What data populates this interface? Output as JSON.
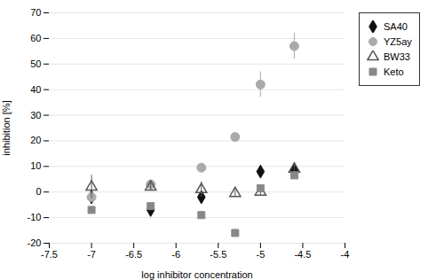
{
  "chart_data": {
    "type": "scatter",
    "xlabel": "log inhibitor concentration",
    "ylabel": "inhibition [%]",
    "xlim": [
      -7.5,
      -4.0
    ],
    "ylim": [
      -20,
      70
    ],
    "xticks": [
      -7.5,
      -7,
      -6.5,
      -6,
      -5.5,
      -5,
      -4.5,
      -4
    ],
    "yticks": [
      -20,
      -10,
      0,
      10,
      20,
      30,
      40,
      50,
      60,
      70
    ],
    "grid": true,
    "legend": "right",
    "series": [
      {
        "name": "SA40",
        "color": "#111111",
        "marker": "diamond",
        "x": [
          -7.0,
          -6.3,
          -5.7,
          -5.0,
          -4.6
        ],
        "values": [
          -2.0,
          -7.0,
          -2.0,
          8.0,
          8.5
        ],
        "yerr": [
          2.5,
          1.5,
          2.5,
          2.0,
          2.0
        ]
      },
      {
        "name": "YZ5ay",
        "color": "#aaaaaa",
        "marker": "circle",
        "x": [
          -7.0,
          -6.3,
          -5.7,
          -5.3,
          -5.0,
          -4.6
        ],
        "values": [
          -2.0,
          3.0,
          9.5,
          21.5,
          42.0,
          57.0
        ],
        "yerr": [
          1.0,
          1.5,
          1.5,
          0.0,
          5.0,
          5.0
        ]
      },
      {
        "name": "BW33",
        "color": "#555555",
        "marker": "triangle-open",
        "x": [
          -7.0,
          -6.3,
          -5.7,
          -5.3,
          -5.0,
          -4.6
        ],
        "values": [
          2.0,
          2.0,
          1.0,
          -0.5,
          0.0,
          9.0
        ],
        "yerr": [
          4.5,
          1.5,
          3.0,
          1.5,
          1.5,
          2.0
        ]
      },
      {
        "name": "Keto",
        "color": "#888888",
        "marker": "square",
        "x": [
          -7.0,
          -6.3,
          -5.7,
          -5.3,
          -5.0,
          -4.6
        ],
        "values": [
          -7.0,
          -5.5,
          -9.0,
          -16.0,
          1.5,
          6.5
        ],
        "yerr": [
          1.5,
          1.0,
          1.5,
          1.5,
          1.0,
          1.5
        ]
      }
    ]
  }
}
